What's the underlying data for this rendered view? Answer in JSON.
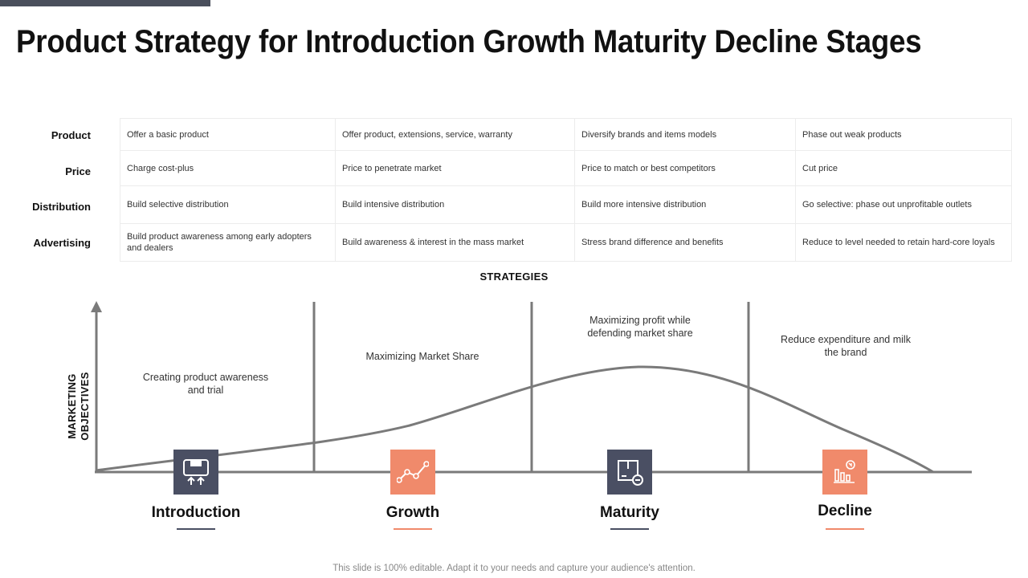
{
  "title": "Product Strategy for Introduction Growth Maturity Decline Stages",
  "strategy_table": {
    "row_labels": [
      "Product",
      "Price",
      "Distribution",
      "Advertising"
    ],
    "rows": [
      [
        "Offer a basic product",
        "Offer product, extensions, service, warranty",
        "Diversify  brands and items models",
        "Phase out weak products"
      ],
      [
        "Charge cost-plus",
        "Price to penetrate market",
        "Price to match  or best competitors",
        "Cut price"
      ],
      [
        "Build selective  distribution",
        "Build intensive  distribution",
        "Build more intensive distribution",
        "Go selective: phase out unprofitable outlets"
      ],
      [
        "Build product awareness among early adopters and dealers",
        "Build awareness & interest in the mass  market",
        "Stress brand difference and benefits",
        "Reduce to level needed to retain  hard-core loyals"
      ]
    ]
  },
  "strategies_label": "STRATEGIES",
  "y_axis_label": "MARKETING OBJECTIVES",
  "objectives": [
    "Creating product awareness and trial",
    "Maximizing Market Share",
    "Maximizing profit while defending market share",
    "Reduce expenditure and milk the brand"
  ],
  "stages": [
    {
      "name": "Introduction",
      "icon": "box-up-arrows-icon",
      "color": "#4a4f63"
    },
    {
      "name": "Growth",
      "icon": "line-chart-icon",
      "color": "#f08a6b"
    },
    {
      "name": "Maturity",
      "icon": "box-minus-icon",
      "color": "#4a4f63"
    },
    {
      "name": "Decline",
      "icon": "bar-chart-decline-icon",
      "color": "#f08a6b"
    }
  ],
  "footer": "This slide is 100% editable. Adapt it to your needs and capture your audience's attention."
}
